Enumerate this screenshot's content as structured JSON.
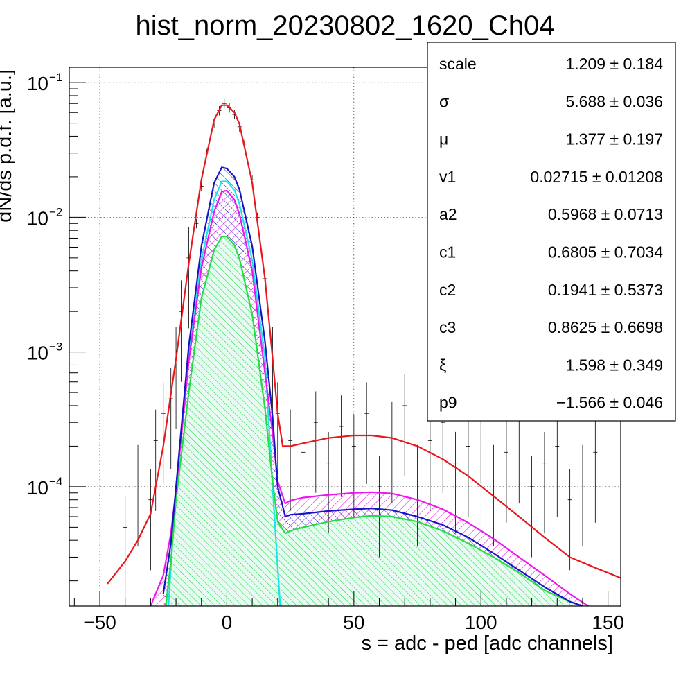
{
  "chart_data": {
    "type": "line",
    "title": "hist_norm_20230802_1620_Ch04",
    "xlabel": "s = adc - ped [adc channels]",
    "ylabel": "dN/ds p.d.f. [a.u.]",
    "xlim": [
      -62,
      155
    ],
    "ylim": [
      1.3e-05,
      0.13
    ],
    "yscale": "log",
    "grid": true,
    "x_ticks": [
      -50,
      0,
      50,
      100,
      150
    ],
    "y_ticks": [
      {
        "value": 0.0001,
        "base": "10",
        "exp": "−4"
      },
      {
        "value": 0.001,
        "base": "10",
        "exp": "−3"
      },
      {
        "value": 0.01,
        "base": "10",
        "exp": "−2"
      },
      {
        "value": 0.1,
        "base": "10",
        "exp": "−1"
      }
    ],
    "colors": {
      "red": "#e8171b",
      "blue": "#1515c6",
      "magenta": "#ee16ee",
      "cyan": "#1ee5e5",
      "green": "#22dd44"
    },
    "series": [
      {
        "color": "red",
        "x": [
          -47,
          -40,
          -35,
          -30,
          -28,
          -25,
          -20,
          -15,
          -10,
          -5,
          -2,
          0,
          3,
          5,
          10,
          15,
          18,
          20,
          22,
          25,
          30,
          40,
          50,
          57,
          65,
          75,
          85,
          95,
          105,
          115,
          125,
          135,
          145,
          155
        ],
        "y": [
          1.9e-05,
          2.8e-05,
          4e-05,
          6.3e-05,
          0.0001,
          0.0002,
          0.00089,
          0.0045,
          0.019,
          0.053,
          0.068,
          0.068,
          0.06,
          0.049,
          0.018,
          0.0035,
          0.0009,
          0.00035,
          0.0002,
          0.0002,
          0.00021,
          0.00023,
          0.00024,
          0.00024,
          0.00023,
          0.0002,
          0.00016,
          0.00012,
          8.5e-05,
          6e-05,
          4.2e-05,
          3e-05,
          2.5e-05,
          2.1e-05
        ]
      },
      {
        "color": "blue",
        "x": [
          -25,
          -22,
          -20,
          -15,
          -10,
          -5,
          -2,
          0,
          3,
          5,
          10,
          15,
          18,
          20,
          23,
          25,
          30,
          40,
          50,
          57,
          65,
          75,
          85,
          95,
          105,
          115,
          125,
          135,
          140
        ],
        "y": [
          1.6e-05,
          3.8e-05,
          0.0001,
          0.0011,
          0.0061,
          0.018,
          0.0235,
          0.023,
          0.02,
          0.016,
          0.0061,
          0.0012,
          0.00033,
          0.0001,
          6e-05,
          6.2e-05,
          6.3e-05,
          6.6e-05,
          6.8e-05,
          6.9e-05,
          6.7e-05,
          6e-05,
          5.2e-05,
          4.2e-05,
          3.2e-05,
          2.4e-05,
          1.8e-05,
          1.4e-05,
          1.3e-05
        ]
      },
      {
        "color": "magenta",
        "x": [
          -30,
          -25,
          -22,
          -20,
          -15,
          -10,
          -5,
          -2,
          0,
          3,
          5,
          10,
          15,
          18,
          20,
          23,
          25,
          30,
          40,
          50,
          57,
          65,
          75,
          85,
          95,
          105,
          115,
          125,
          135,
          145
        ],
        "y": [
          1.3e-05,
          2.2e-05,
          4.5e-05,
          9.5e-05,
          0.00085,
          0.0042,
          0.011,
          0.0155,
          0.0158,
          0.0135,
          0.0105,
          0.004,
          0.0007,
          0.00025,
          0.00011,
          7.5e-05,
          7.9e-05,
          8.3e-05,
          8.7e-05,
          9e-05,
          9.1e-05,
          8.9e-05,
          8e-05,
          6.8e-05,
          5.4e-05,
          4.1e-05,
          3e-05,
          2.2e-05,
          1.6e-05,
          1.2e-05
        ]
      },
      {
        "color": "cyan",
        "x": [
          -23,
          -20,
          -15,
          -10,
          -5,
          -2,
          0,
          3,
          5,
          10,
          15,
          18,
          20,
          21
        ],
        "y": [
          1.3e-05,
          0.0001,
          0.0009,
          0.0048,
          0.0135,
          0.0185,
          0.0185,
          0.016,
          0.0125,
          0.0048,
          0.0009,
          0.0001,
          2.5e-05,
          1.3e-05
        ]
      },
      {
        "color": "green",
        "x": [
          -24,
          -22,
          -20,
          -15,
          -10,
          -5,
          -2,
          0,
          3,
          5,
          10,
          15,
          18,
          20,
          23,
          25,
          30,
          40,
          50,
          57,
          65,
          75,
          85,
          95,
          105,
          115,
          125,
          135,
          140
        ],
        "y": [
          1.3e-05,
          2.8e-05,
          8e-05,
          0.0005,
          0.0025,
          0.0057,
          0.0072,
          0.0072,
          0.0062,
          0.0049,
          0.0019,
          0.00038,
          0.00011,
          5.5e-05,
          4.5e-05,
          4.7e-05,
          5e-05,
          5.5e-05,
          5.9e-05,
          6.1e-05,
          6e-05,
          5.5e-05,
          4.7e-05,
          3.8e-05,
          3e-05,
          2.3e-05,
          1.7e-05,
          1.4e-05,
          1.3e-05
        ]
      }
    ],
    "data_points": {
      "x": [
        -40,
        -35,
        -30,
        -28,
        -25,
        -22,
        -20,
        -18,
        -15,
        -12,
        -10,
        -8,
        -5,
        -3,
        -1,
        1,
        3,
        5,
        7,
        10,
        12,
        15,
        18,
        20,
        25,
        30,
        35,
        40,
        45,
        50,
        55,
        60,
        65,
        70,
        75,
        80,
        85,
        90,
        95,
        100,
        105,
        110,
        115,
        120,
        125,
        130,
        135,
        140,
        145
      ],
      "y": [
        5e-05,
        0.00012,
        8e-05,
        0.00022,
        0.00035,
        0.00045,
        0.0009,
        0.002,
        0.005,
        0.009,
        0.017,
        0.03,
        0.05,
        0.062,
        0.07,
        0.065,
        0.058,
        0.047,
        0.035,
        0.019,
        0.01,
        0.0035,
        0.0009,
        0.00035,
        0.00022,
        0.00018,
        0.0003,
        0.00015,
        0.00028,
        0.0002,
        0.00035,
        0.0001,
        0.00025,
        0.0004,
        0.00012,
        0.00022,
        0.0003,
        0.00015,
        0.0002,
        0.00035,
        0.00012,
        0.00018,
        0.00025,
        0.0001,
        0.00015,
        0.0002,
        8e-05,
        0.00012,
        0.00018
      ]
    }
  },
  "stats": [
    {
      "name": "scale",
      "value": "1.209 ± 0.184"
    },
    {
      "name": "σ",
      "value": "5.688 ± 0.036"
    },
    {
      "name": "μ",
      "value": "1.377 ± 0.197"
    },
    {
      "name": "v1",
      "value": "0.02715 ± 0.01208"
    },
    {
      "name": "a2",
      "value": "0.5968 ± 0.0713"
    },
    {
      "name": "c1",
      "value": "0.6805 ± 0.7034"
    },
    {
      "name": "c2",
      "value": "0.1941 ± 0.5373"
    },
    {
      "name": "c3",
      "value": "0.8625 ± 0.6698"
    },
    {
      "name": "ξ",
      "value": "1.598 ± 0.349"
    },
    {
      "name": "p9",
      "value": "−1.566 ± 0.046"
    }
  ]
}
